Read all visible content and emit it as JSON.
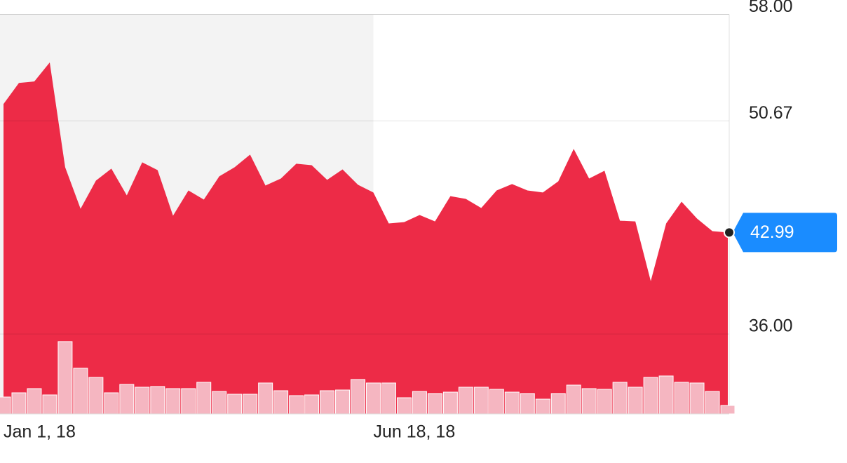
{
  "chart_data": {
    "type": "area",
    "categories": [
      "Jan 1, 18",
      null,
      null,
      null,
      null,
      null,
      null,
      null,
      null,
      null,
      null,
      null,
      null,
      null,
      null,
      null,
      null,
      null,
      null,
      null,
      null,
      null,
      null,
      null,
      "Jun 18, 18",
      null,
      null,
      null,
      null,
      null,
      null,
      null,
      null,
      null,
      null,
      null,
      null,
      null,
      null,
      null,
      null,
      null,
      null,
      null,
      null,
      null,
      null,
      null
    ],
    "series": [
      {
        "color": "#ec1b39",
        "values": [
          51.83,
          53.28,
          53.38,
          54.69,
          47.48,
          44.62,
          46.56,
          47.38,
          45.54,
          47.82,
          47.28,
          44.14,
          45.88,
          45.25,
          46.85,
          47.48,
          48.35,
          46.22,
          46.7,
          47.72,
          47.62,
          46.61,
          47.33,
          46.27,
          45.74,
          43.61,
          43.7,
          44.19,
          43.75,
          45.49,
          45.3,
          44.67,
          45.88,
          46.32,
          45.88,
          45.74,
          46.51,
          48.74,
          46.7,
          47.24,
          43.8,
          43.75,
          39.64,
          43.61,
          45.11,
          43.95,
          43.08,
          42.99
        ]
      },
      {
        "color": "#f5b6c1",
        "axis": "volume",
        "values": [
          24,
          30,
          36,
          27,
          103,
          65,
          52,
          30,
          42,
          38,
          39,
          36,
          36,
          45,
          32,
          28,
          28,
          44,
          33,
          26,
          27,
          33,
          34,
          49,
          44,
          44,
          23,
          32,
          29,
          31,
          38,
          38,
          35,
          31,
          29,
          21,
          29,
          41,
          36,
          35,
          45,
          38,
          52,
          54,
          45,
          44,
          32,
          12
        ]
      }
    ],
    "ylim": [
      30.5,
      58
    ],
    "yticks": [
      {
        "value": 58,
        "label": "58.00"
      },
      {
        "value": 50.67,
        "label": "50.67"
      },
      {
        "value": 36,
        "label": "36.00"
      }
    ],
    "volume_ylim": [
      0,
      569
    ],
    "shaded_until": 24,
    "last_price_color": "#1a8cff",
    "grid": true
  }
}
